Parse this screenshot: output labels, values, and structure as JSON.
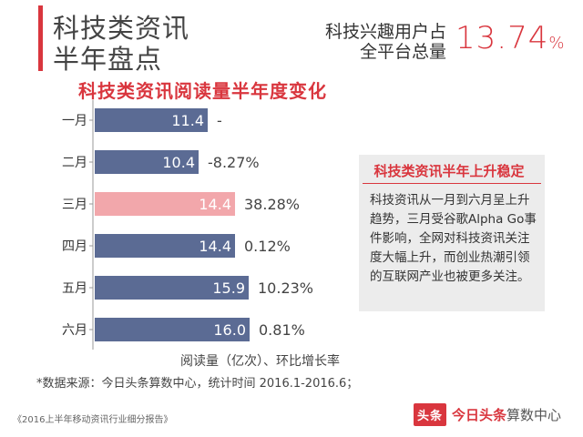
{
  "header": {
    "title_line1": "科技类资讯",
    "title_line2": "半年盘点",
    "stat_label_line1": "科技兴趣用户占",
    "stat_label_line2": "全平台总量",
    "stat_value": "13.74",
    "stat_unit": "%"
  },
  "colors": {
    "accent": "#d9363e",
    "bar_default": "#5b6b94",
    "bar_highlight": "#f2a7ab",
    "note_bg": "#ececec"
  },
  "chart_data": {
    "type": "bar",
    "orientation": "horizontal",
    "title": "科技类资讯阅读量半年度变化",
    "categories": [
      "一月",
      "二月",
      "三月",
      "四月",
      "五月",
      "六月"
    ],
    "values": [
      11.4,
      10.4,
      14.4,
      14.4,
      15.9,
      16.0
    ],
    "value_labels": [
      "11.4",
      "10.4",
      "14.4",
      "14.4",
      "15.9",
      "16.0"
    ],
    "growth_labels": [
      "-",
      "-8.27%",
      "38.28%",
      "0.12%",
      "10.23%",
      "0.81%"
    ],
    "highlight_index": 2,
    "xlabel": "阅读量（亿次）、环比增长率",
    "grid": false
  },
  "footnote": "*数据来源：今日头条算数中心，统计时间 2016.1-2016.6；",
  "source": "《2016上半年移动资讯行业细分报告》",
  "brand": {
    "logo": "头条",
    "name": "今日头条",
    "sub": "算数中心"
  },
  "note": {
    "title": "科技类资讯半年上升稳定",
    "body": "科技资讯从一月到六月呈上升趋势，三月受谷歌Alpha Go事件影响，全网对科技资讯关注度大幅上升，而创业热潮引领的互联网产业也被更多关注。"
  }
}
